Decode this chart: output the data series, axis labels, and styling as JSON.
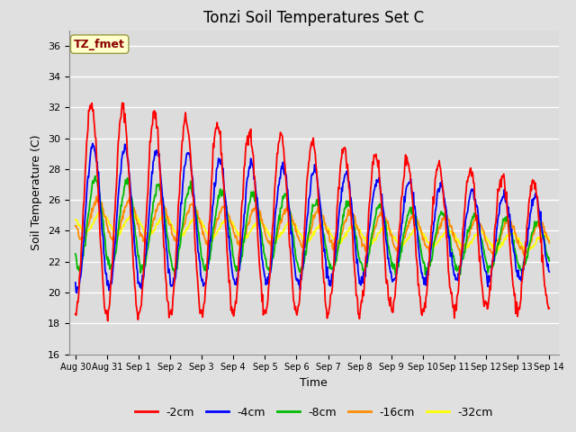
{
  "title": "Tonzi Soil Temperatures Set C",
  "xlabel": "Time",
  "ylabel": "Soil Temperature (C)",
  "ylim": [
    16,
    37
  ],
  "annotation": "TZ_fmet",
  "annotation_color": "#8B0000",
  "annotation_bg": "#FFFFCC",
  "series_colors": {
    "-2cm": "#FF0000",
    "-4cm": "#0000FF",
    "-8cm": "#00BB00",
    "-16cm": "#FF8C00",
    "-32cm": "#FFFF00"
  },
  "tick_labels": [
    "Aug 30",
    "Aug 31",
    "Sep 1",
    "Sep 2",
    "Sep 3",
    "Sep 4",
    "Sep 5",
    "Sep 6",
    "Sep 7",
    "Sep 8",
    "Sep 9",
    "Sep 10",
    "Sep 11",
    "Sep 12",
    "Sep 13",
    "Sep 14"
  ],
  "bg_color": "#E0E0E0",
  "plot_bg": "#DCDCDC",
  "grid_color": "#FFFFFF",
  "yticks": [
    16,
    18,
    20,
    22,
    24,
    26,
    28,
    30,
    32,
    34,
    36
  ],
  "figsize": [
    6.4,
    4.8
  ],
  "dpi": 100
}
